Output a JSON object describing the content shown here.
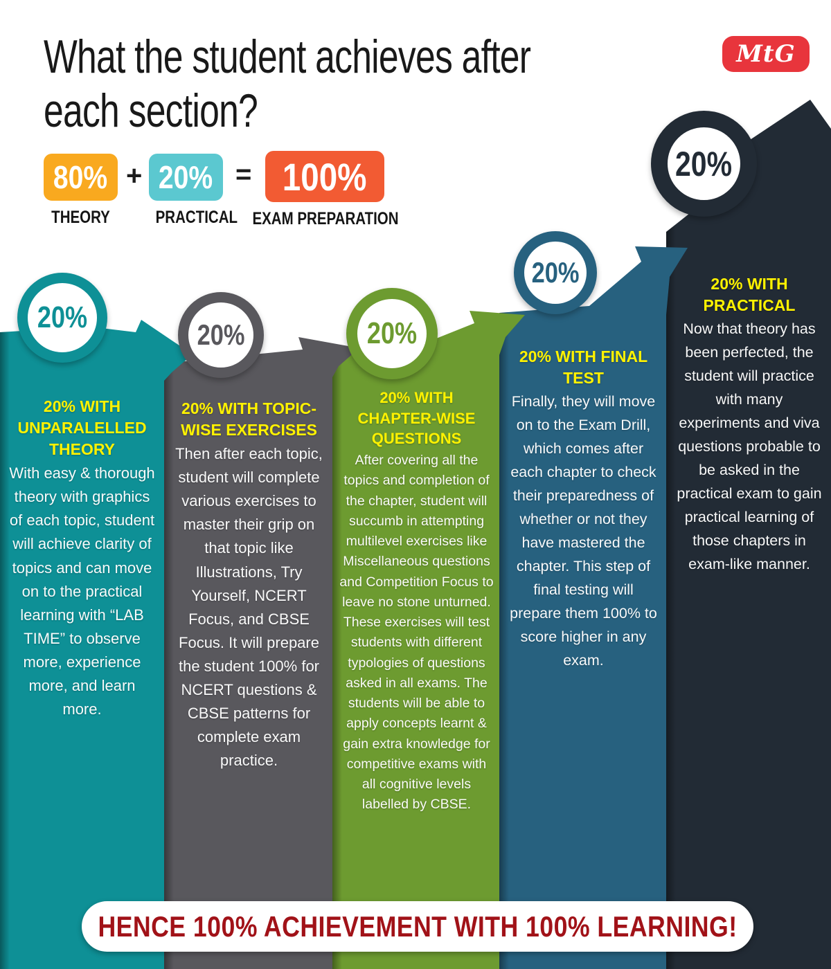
{
  "title": {
    "line1": "What the student achieves after",
    "line2": "each section?"
  },
  "logo": {
    "text": "MtG",
    "color": "#E8353C"
  },
  "formula": {
    "theory": {
      "value": "80%",
      "label": "THEORY",
      "color": "#F9A91F"
    },
    "plus": "+",
    "practical": {
      "value": "20%",
      "label": "PRACTICAL",
      "color": "#5BC8D0"
    },
    "equals": "=",
    "total": {
      "value": "100%",
      "label": "EXAM PREPARATION",
      "color": "#F25B33"
    }
  },
  "columns": [
    {
      "badge": "20%",
      "color": "#0E9096",
      "heading": "20% WITH UNPARALELLED THEORY",
      "body": "With easy & thorough theory with graphics of each topic, student will achieve clarity of topics and can move on to the practical learning with “LAB TIME” to observe more, experience more, and learn more."
    },
    {
      "badge": "20%",
      "color": "#59585D",
      "heading": "20% WITH TOPIC-WISE EXERCISES",
      "body": "Then after each topic, student will complete various exercises to master their grip on that topic like Illustrations, Try Yourself, NCERT Focus, and CBSE Focus. It will prepare the student 100% for NCERT questions & CBSE patterns for complete exam practice."
    },
    {
      "badge": "20%",
      "color": "#6D9B30",
      "heading": "20% WITH CHAPTER-WISE QUESTIONS",
      "body": "After covering all the topics and completion of the chapter, student will succumb in attempting multilevel exercises like Miscellaneous questions and Competition Focus to leave no stone unturned. These exercises will test students with different typologies of questions asked in all exams. The students will be able to apply concepts learnt & gain extra knowledge for competitive exams with all cognitive levels labelled by CBSE."
    },
    {
      "badge": "20%",
      "color": "#27617F",
      "heading": "20% WITH FINAL TEST",
      "body": "Finally, they will move on to the Exam Drill, which comes after each chapter to check their preparedness of whether or not they have mastered the chapter. This step of final testing will prepare them 100% to score higher in any exam."
    },
    {
      "badge": "20%",
      "color": "#222B35",
      "heading": "20% WITH PRACTICAL",
      "body": "Now that theory has been perfected, the student will practice with many experiments and viva questions probable to be asked in the practical exam to gain practical learning of those chapters in exam-like manner."
    }
  ],
  "banner": {
    "text": "HENCE 100% ACHIEVEMENT WITH 100% LEARNING!",
    "color": "#A11218"
  },
  "accent_colors": {
    "heading_yellow": "#FFF200",
    "title_black": "#191919"
  }
}
